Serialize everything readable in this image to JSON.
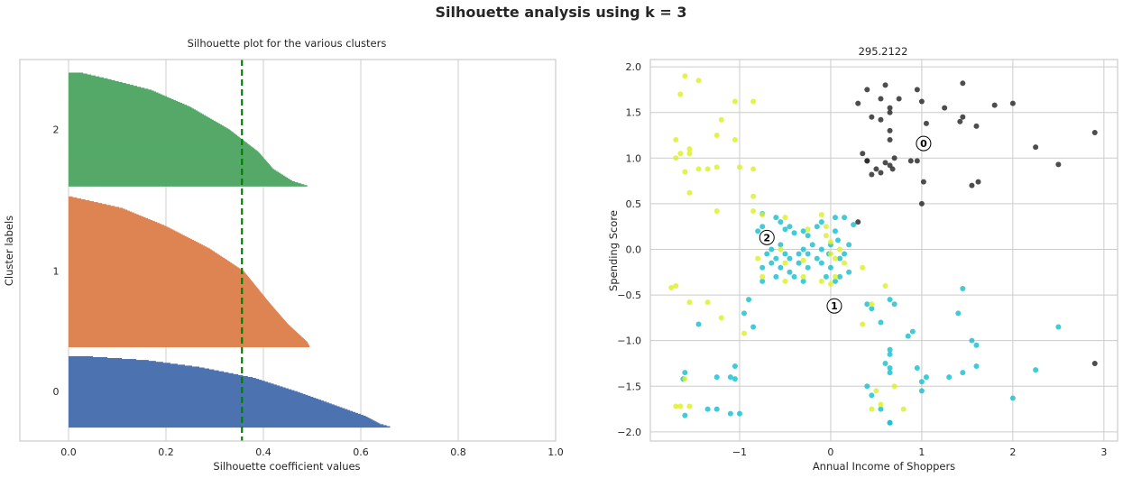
{
  "figure": {
    "title": "Silhouette analysis using k = 3"
  },
  "chart_data": [
    {
      "type": "bar",
      "subtype": "silhouette",
      "title": "Silhouette plot for the various clusters",
      "xlabel": "Silhouette coefficient values",
      "ylabel": "Cluster labels",
      "xlim": [
        -0.1,
        1.0
      ],
      "xticks": [
        "0.0",
        "0.2",
        "0.4",
        "0.6",
        "0.8",
        "1.0"
      ],
      "xtick_values": [
        0.0,
        0.2,
        0.4,
        0.6,
        0.8,
        1.0
      ],
      "grid": true,
      "average_silhouette": 0.356,
      "average_line_color": "#008000",
      "clusters": [
        {
          "label": "0",
          "color": "#4c72b0",
          "size": 75,
          "profile": [
            [
              0,
              0.66
            ],
            [
              0.04,
              0.64
            ],
            [
              0.15,
              0.61
            ],
            [
              0.3,
              0.55
            ],
            [
              0.5,
              0.47
            ],
            [
              0.7,
              0.38
            ],
            [
              0.85,
              0.27
            ],
            [
              0.95,
              0.16
            ],
            [
              1.0,
              0.05
            ]
          ]
        },
        {
          "label": "1",
          "color": "#dd8452",
          "size": 160,
          "profile": [
            [
              0,
              0.495
            ],
            [
              0.03,
              0.49
            ],
            [
              0.15,
              0.45
            ],
            [
              0.3,
              0.41
            ],
            [
              0.5,
              0.36
            ],
            [
              0.65,
              0.29
            ],
            [
              0.8,
              0.2
            ],
            [
              0.92,
              0.11
            ],
            [
              1.0,
              0.0
            ]
          ]
        },
        {
          "label": "2",
          "color": "#55a868",
          "size": 120,
          "profile": [
            [
              0,
              0.49
            ],
            [
              0.04,
              0.46
            ],
            [
              0.15,
              0.42
            ],
            [
              0.3,
              0.39
            ],
            [
              0.5,
              0.33
            ],
            [
              0.7,
              0.25
            ],
            [
              0.85,
              0.17
            ],
            [
              0.95,
              0.08
            ],
            [
              1.0,
              0.03
            ]
          ]
        }
      ]
    },
    {
      "type": "scatter",
      "title": "295.2122",
      "xlabel": "Annual Income of Shoppers",
      "ylabel": "Spending Score",
      "xlim": [
        -1.98,
        3.15
      ],
      "ylim": [
        -2.1,
        2.08
      ],
      "xticks": [
        "−1",
        "0",
        "1",
        "2",
        "3"
      ],
      "xtick_values": [
        -1,
        0,
        1,
        2,
        3
      ],
      "yticks": [
        "−2.0",
        "−1.5",
        "−1.0",
        "−0.5",
        "0.0",
        "0.5",
        "1.0",
        "1.5",
        "2.0"
      ],
      "ytick_values": [
        -2.0,
        -1.5,
        -1.0,
        -0.5,
        0.0,
        0.5,
        1.0,
        1.5,
        2.0
      ],
      "grid": true,
      "series": [
        {
          "cluster": "0",
          "color": "#262626",
          "points": [
            [
              0.3,
              1.6
            ],
            [
              0.4,
              1.75
            ],
            [
              0.55,
              1.65
            ],
            [
              0.6,
              1.8
            ],
            [
              0.65,
              1.55
            ],
            [
              0.65,
              1.5
            ],
            [
              0.75,
              1.65
            ],
            [
              0.95,
              1.75
            ],
            [
              1.0,
              1.62
            ],
            [
              1.05,
              1.38
            ],
            [
              1.25,
              1.55
            ],
            [
              1.45,
              1.82
            ],
            [
              1.45,
              1.45
            ],
            [
              1.42,
              1.4
            ],
            [
              1.6,
              1.35
            ],
            [
              1.8,
              1.58
            ],
            [
              2.0,
              1.6
            ],
            [
              0.45,
              1.45
            ],
            [
              0.55,
              1.42
            ],
            [
              0.65,
              1.3
            ],
            [
              0.65,
              1.2
            ],
            [
              0.7,
              1.0
            ],
            [
              0.65,
              0.92
            ],
            [
              0.6,
              0.95
            ],
            [
              0.5,
              0.88
            ],
            [
              0.45,
              0.82
            ],
            [
              0.55,
              0.84
            ],
            [
              0.35,
              1.05
            ],
            [
              0.4,
              0.97
            ],
            [
              0.4,
              0.97
            ],
            [
              0.68,
              0.88
            ],
            [
              0.88,
              0.97
            ],
            [
              0.95,
              0.97
            ],
            [
              1.02,
              0.74
            ],
            [
              1.55,
              0.7
            ],
            [
              1.62,
              0.74
            ],
            [
              2.25,
              1.12
            ],
            [
              2.5,
              0.93
            ],
            [
              2.9,
              1.28
            ],
            [
              1.0,
              0.5
            ],
            [
              0.3,
              0.3
            ],
            [
              2.9,
              -1.25
            ]
          ]
        },
        {
          "cluster": "1",
          "color": "#17becf",
          "points": [
            [
              -0.75,
              0.39
            ],
            [
              -0.6,
              0.35
            ],
            [
              -0.55,
              0.3
            ],
            [
              -0.45,
              0.25
            ],
            [
              -0.5,
              0.22
            ],
            [
              -0.4,
              0.18
            ],
            [
              -0.3,
              0.2
            ],
            [
              -0.25,
              0.15
            ],
            [
              -0.15,
              0.25
            ],
            [
              -0.1,
              0.3
            ],
            [
              0.05,
              0.35
            ],
            [
              0.15,
              0.35
            ],
            [
              0.25,
              0.27
            ],
            [
              0.05,
              0.2
            ],
            [
              -0.7,
              0.1
            ],
            [
              -0.65,
              0.0
            ],
            [
              -0.55,
              0.05
            ],
            [
              -0.5,
              -0.05
            ],
            [
              -0.45,
              -0.1
            ],
            [
              -0.35,
              -0.05
            ],
            [
              -0.3,
              0.0
            ],
            [
              -0.2,
              0.05
            ],
            [
              -0.1,
              0.0
            ],
            [
              0.0,
              0.05
            ],
            [
              0.1,
              -0.1
            ],
            [
              -0.75,
              -0.2
            ],
            [
              -0.65,
              -0.15
            ],
            [
              -0.55,
              -0.2
            ],
            [
              -0.45,
              -0.25
            ],
            [
              -0.35,
              -0.15
            ],
            [
              -0.25,
              -0.2
            ],
            [
              -0.1,
              -0.15
            ],
            [
              0.0,
              -0.2
            ],
            [
              0.1,
              -0.3
            ],
            [
              0.2,
              -0.25
            ],
            [
              -0.75,
              -0.35
            ],
            [
              -0.6,
              -0.3
            ],
            [
              -0.3,
              -0.35
            ],
            [
              -0.05,
              -0.3
            ],
            [
              0.05,
              -0.35
            ],
            [
              -0.8,
              0.2
            ],
            [
              -0.7,
              -0.05
            ],
            [
              -0.6,
              -0.1
            ],
            [
              -0.4,
              -0.3
            ],
            [
              -0.25,
              -0.05
            ],
            [
              -0.15,
              -0.1
            ],
            [
              -0.02,
              -0.05
            ],
            [
              0.08,
              0.1
            ],
            [
              0.2,
              0.05
            ],
            [
              0.15,
              -0.05
            ],
            [
              -0.9,
              -0.55
            ],
            [
              -0.85,
              -0.85
            ],
            [
              -0.95,
              -0.7
            ],
            [
              -1.45,
              -0.82
            ],
            [
              -1.6,
              -1.35
            ],
            [
              -1.62,
              -1.42
            ],
            [
              -1.25,
              -1.4
            ],
            [
              -1.25,
              -1.75
            ],
            [
              -1.1,
              -1.4
            ],
            [
              -1.05,
              -1.28
            ],
            [
              -1.0,
              -1.8
            ],
            [
              -1.1,
              -1.8
            ],
            [
              -1.35,
              -1.75
            ],
            [
              -1.6,
              -1.82
            ],
            [
              0.4,
              -0.6
            ],
            [
              0.45,
              -0.65
            ],
            [
              0.55,
              -0.8
            ],
            [
              0.65,
              -0.55
            ],
            [
              0.7,
              -0.6
            ],
            [
              0.85,
              -0.95
            ],
            [
              0.9,
              -0.9
            ],
            [
              0.65,
              -1.1
            ],
            [
              0.65,
              -1.15
            ],
            [
              0.65,
              -1.3
            ],
            [
              0.65,
              -1.35
            ],
            [
              0.6,
              -1.25
            ],
            [
              0.4,
              -1.5
            ],
            [
              0.45,
              -1.6
            ],
            [
              0.55,
              -1.75
            ],
            [
              0.65,
              -1.9
            ],
            [
              0.65,
              -1.9
            ],
            [
              0.95,
              -1.3
            ],
            [
              1.0,
              -1.45
            ],
            [
              1.0,
              -1.55
            ],
            [
              1.05,
              -1.4
            ],
            [
              1.3,
              -1.4
            ],
            [
              1.45,
              -1.35
            ],
            [
              1.55,
              -1.0
            ],
            [
              1.6,
              -1.05
            ],
            [
              1.6,
              -1.28
            ],
            [
              1.45,
              -0.43
            ],
            [
              1.4,
              -0.7
            ],
            [
              2.0,
              -1.63
            ],
            [
              2.25,
              -1.32
            ],
            [
              2.5,
              -0.85
            ],
            [
              -1.05,
              -1.42
            ],
            [
              -0.75,
              0.25
            ]
          ]
        },
        {
          "cluster": "2",
          "color": "#dbf028",
          "points": [
            [
              -1.65,
              1.7
            ],
            [
              -1.6,
              1.9
            ],
            [
              -1.45,
              1.85
            ],
            [
              -1.05,
              1.62
            ],
            [
              -0.85,
              1.62
            ],
            [
              -1.7,
              1.2
            ],
            [
              -1.65,
              1.05
            ],
            [
              -1.7,
              1.0
            ],
            [
              -1.6,
              0.85
            ],
            [
              -1.55,
              1.1
            ],
            [
              -1.55,
              1.05
            ],
            [
              -1.45,
              0.88
            ],
            [
              -1.35,
              0.88
            ],
            [
              -1.25,
              0.9
            ],
            [
              -1.25,
              1.25
            ],
            [
              -1.2,
              1.42
            ],
            [
              -1.05,
              1.2
            ],
            [
              -1.0,
              0.9
            ],
            [
              -0.85,
              0.88
            ],
            [
              -1.55,
              0.62
            ],
            [
              -0.85,
              0.58
            ],
            [
              -0.85,
              0.42
            ],
            [
              -1.25,
              0.42
            ],
            [
              -0.75,
              0.38
            ],
            [
              -0.5,
              0.35
            ],
            [
              -0.25,
              0.22
            ],
            [
              -0.1,
              0.38
            ],
            [
              -0.05,
              0.25
            ],
            [
              -0.55,
              0.0
            ],
            [
              -0.5,
              -0.15
            ],
            [
              -0.3,
              -0.12
            ],
            [
              -0.05,
              0.15
            ],
            [
              0.0,
              0.08
            ],
            [
              0.0,
              -0.05
            ],
            [
              0.05,
              -0.1
            ],
            [
              0.1,
              0.0
            ],
            [
              0.15,
              -0.15
            ],
            [
              -0.8,
              -0.1
            ],
            [
              -0.75,
              -0.3
            ],
            [
              -0.5,
              -0.35
            ],
            [
              -0.3,
              -0.3
            ],
            [
              -0.1,
              -0.35
            ],
            [
              0.0,
              -0.38
            ],
            [
              0.05,
              -0.3
            ],
            [
              -1.75,
              -0.42
            ],
            [
              -1.7,
              -0.4
            ],
            [
              -1.55,
              -0.58
            ],
            [
              -1.35,
              -0.58
            ],
            [
              -1.2,
              -0.75
            ],
            [
              -0.95,
              -0.92
            ],
            [
              -1.7,
              -1.72
            ],
            [
              -1.65,
              -1.72
            ],
            [
              -1.55,
              -1.72
            ],
            [
              -1.6,
              -1.42
            ],
            [
              0.35,
              -0.82
            ],
            [
              0.45,
              -0.6
            ],
            [
              0.6,
              -0.4
            ],
            [
              0.7,
              -1.5
            ],
            [
              0.5,
              -1.55
            ],
            [
              0.45,
              -1.75
            ],
            [
              0.8,
              -1.75
            ],
            [
              0.55,
              -1.7
            ],
            [
              0.35,
              -0.2
            ]
          ]
        }
      ],
      "centers": [
        {
          "label": "0",
          "x": 1.02,
          "y": 1.16
        },
        {
          "label": "1",
          "x": 0.04,
          "y": -0.62
        },
        {
          "label": "2",
          "x": -0.7,
          "y": 0.13
        }
      ]
    }
  ]
}
